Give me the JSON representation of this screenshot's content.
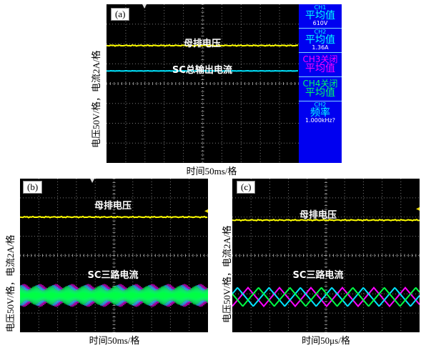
{
  "panels": [
    {
      "tag": "(a)",
      "ylabel": "电压50V/格，电流2A/格",
      "xlabel": "时间50ms/格",
      "traces": [
        {
          "label": "母排电压",
          "color": "#ffff00",
          "level": 0.74
        },
        {
          "label": "SC总输出电流",
          "color": "#00e5ff",
          "level": 0.58
        }
      ]
    },
    {
      "tag": "(b)",
      "ylabel": "电压50V/格，电流2A/格",
      "xlabel": "时间50ms/格",
      "traces": [
        {
          "label": "母排电压",
          "color": "#ffff00",
          "level": 0.75
        },
        {
          "label": "SC三路电流",
          "colors": [
            "#ff00ff",
            "#00e5ff",
            "#00ff44"
          ],
          "level": 0.24
        }
      ]
    },
    {
      "tag": "(c)",
      "ylabel": "电压50V/格，电流2A/格",
      "xlabel": "时间50μs/格",
      "traces": [
        {
          "label": "母排电压",
          "color": "#ffff00",
          "level": 0.73
        },
        {
          "label": "SC三路电流",
          "colors": [
            "#ff00ff",
            "#00e5ff",
            "#00ff44"
          ],
          "level": 0.23
        }
      ]
    }
  ],
  "sidebar": [
    {
      "ch": "CH1",
      "title": "平均值",
      "value": "610V",
      "color": "#00ffff"
    },
    {
      "ch": "CH2",
      "title": "平均值",
      "value": "1.36A",
      "color": "#00ffff"
    },
    {
      "ch": "CH3关闭",
      "title": "平均值",
      "value": "",
      "color": "#ff00ff"
    },
    {
      "ch": "CH4关闭",
      "title": "平均值",
      "value": "",
      "color": "#00ff66"
    },
    {
      "ch": "CH2",
      "title": "频率",
      "value": "1.000kHz?",
      "color": "#00ffff"
    }
  ],
  "colors": {
    "scope_bg": "#000000",
    "grid": "#9a9a9a",
    "sidebar_bg": "#0000f0"
  }
}
